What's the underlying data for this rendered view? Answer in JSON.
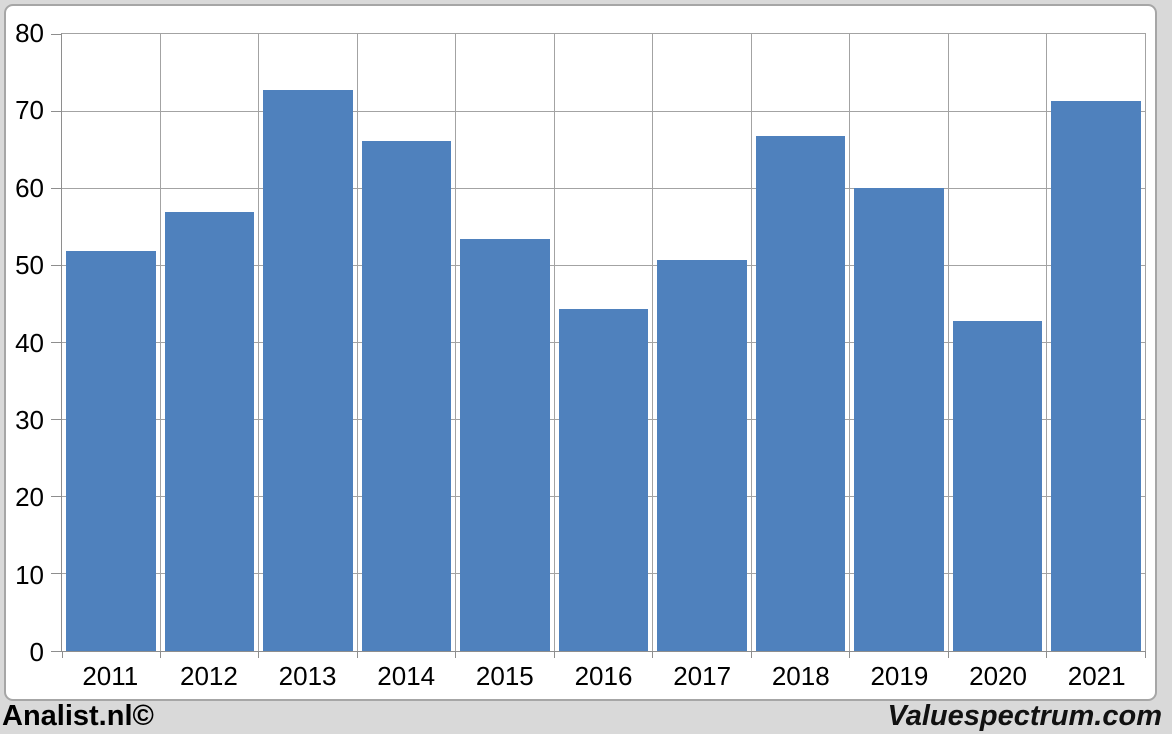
{
  "chart_data": {
    "type": "bar",
    "categories": [
      "2011",
      "2012",
      "2013",
      "2014",
      "2015",
      "2016",
      "2017",
      "2018",
      "2019",
      "2020",
      "2021"
    ],
    "values": [
      51.9,
      56.9,
      72.7,
      66.1,
      53.4,
      44.3,
      50.7,
      66.8,
      60,
      42.8,
      71.3
    ],
    "title": "",
    "xlabel": "",
    "ylabel": "",
    "ylim": [
      0,
      80
    ],
    "yticks": [
      0,
      10,
      20,
      30,
      40,
      50,
      60,
      70,
      80
    ],
    "grid": true,
    "legend": null,
    "bar_color": "#4f81bd",
    "gridline_color": "#a3a3a3",
    "axis_color": "#8e8e8e",
    "plot_background": "#ffffff",
    "page_background": "#d9d9d9",
    "card_border_color": "#a6a6a6"
  },
  "footer": {
    "left_brand": "Analist.nl©",
    "right_brand": "Valuespectrum.com"
  }
}
